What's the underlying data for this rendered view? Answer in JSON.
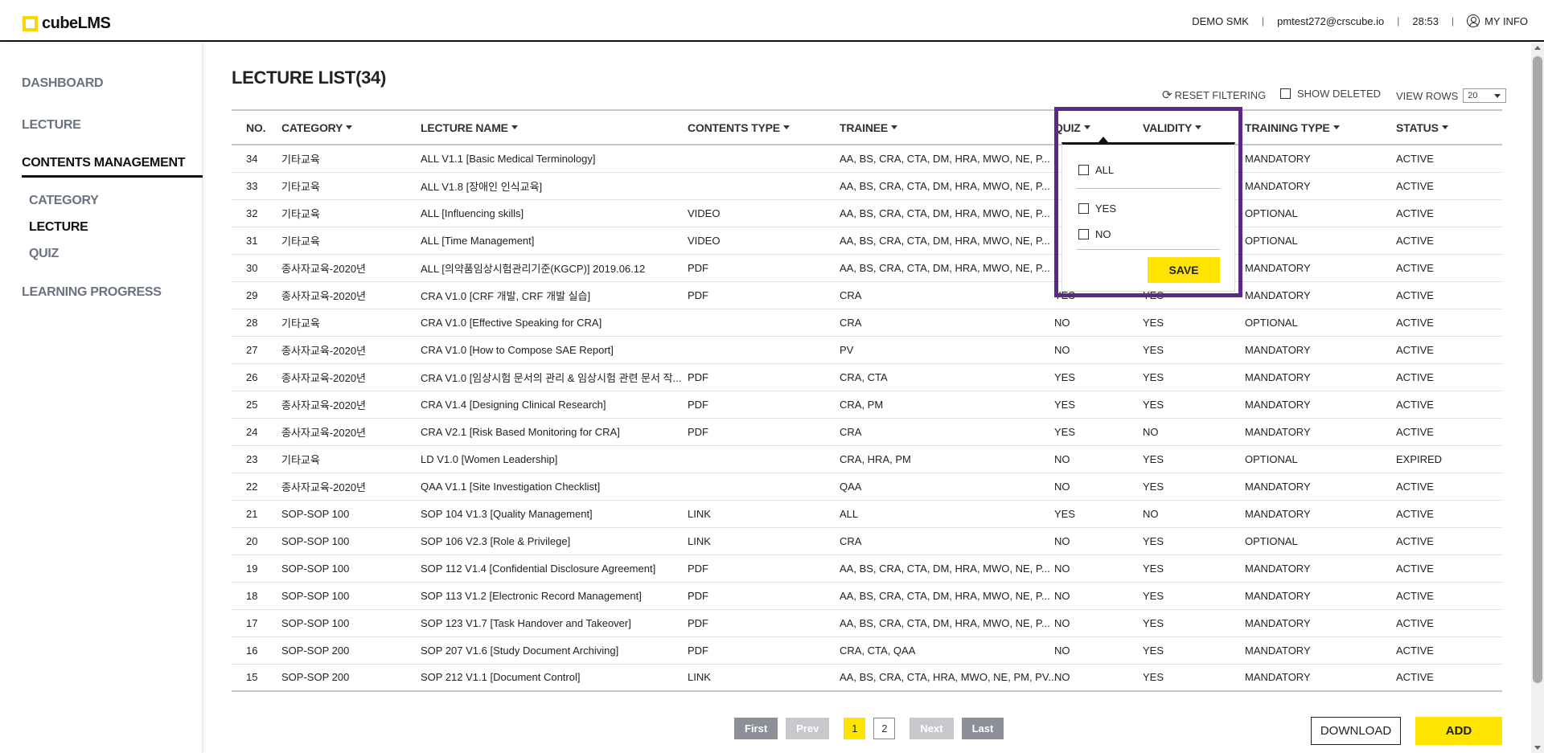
{
  "brand": {
    "name": "cubeLMS",
    "accent": "#ffe400"
  },
  "header": {
    "account": "DEMO SMK",
    "email": "pmtest272@crscube.io",
    "timer": "28:53",
    "my_info": "MY INFO"
  },
  "sidebar": {
    "items": [
      {
        "label": "DASHBOARD"
      },
      {
        "label": "LECTURE"
      },
      {
        "label": "CONTENTS MANAGEMENT"
      },
      {
        "label": "LEARNING PROGRESS"
      }
    ],
    "sub_items": [
      {
        "label": "CATEGORY"
      },
      {
        "label": "LECTURE"
      },
      {
        "label": "QUIZ"
      }
    ]
  },
  "main": {
    "title": "LECTURE LIST(34)",
    "reset_filtering": "RESET FILTERING",
    "show_deleted": "SHOW DELETED",
    "view_rows_label": "VIEW ROWS",
    "view_rows_value": "20"
  },
  "table": {
    "columns": [
      "NO.",
      "CATEGORY",
      "LECTURE NAME",
      "CONTENTS TYPE",
      "TRAINEE",
      "QUIZ",
      "VALIDITY",
      "TRAINING TYPE",
      "STATUS"
    ],
    "rows": [
      [
        "34",
        "기타교육",
        "ALL V1.1 [Basic Medical Terminology]",
        "",
        "AA, BS, CRA, CTA, DM, HRA, MWO, NE, P...",
        "",
        "",
        "MANDATORY",
        "ACTIVE"
      ],
      [
        "33",
        "기타교육",
        "ALL V1.8 [장애인 인식교육]",
        "",
        "AA, BS, CRA, CTA, DM, HRA, MWO, NE, P...",
        "",
        "",
        "MANDATORY",
        "ACTIVE"
      ],
      [
        "32",
        "기타교육",
        "ALL [Influencing skills]",
        "VIDEO",
        "AA, BS, CRA, CTA, DM, HRA, MWO, NE, P...",
        "",
        "",
        "OPTIONAL",
        "ACTIVE"
      ],
      [
        "31",
        "기타교육",
        "ALL [Time Management]",
        "VIDEO",
        "AA, BS, CRA, CTA, DM, HRA, MWO, NE, P...",
        "",
        "",
        "OPTIONAL",
        "ACTIVE"
      ],
      [
        "30",
        "종사자교육-2020년",
        "ALL [의약품임상시험관리기준(KGCP)] 2019.06.12",
        "PDF",
        "AA, BS, CRA, CTA, DM, HRA, MWO, NE, P...",
        "",
        "",
        "MANDATORY",
        "ACTIVE"
      ],
      [
        "29",
        "종사자교육-2020년",
        "CRA V1.0 [CRF 개발, CRF 개발 실습]",
        "PDF",
        "CRA",
        "YES",
        "YES",
        "MANDATORY",
        "ACTIVE"
      ],
      [
        "28",
        "기타교육",
        "CRA V1.0 [Effective Speaking for CRA]",
        "",
        "CRA",
        "NO",
        "YES",
        "OPTIONAL",
        "ACTIVE"
      ],
      [
        "27",
        "종사자교육-2020년",
        "CRA V1.0 [How to Compose SAE Report]",
        "",
        "PV",
        "NO",
        "YES",
        "MANDATORY",
        "ACTIVE"
      ],
      [
        "26",
        "종사자교육-2020년",
        "CRA V1.0 [임상시험 문서의 관리 & 임상시험 관련 문서 작...",
        "PDF",
        "CRA, CTA",
        "YES",
        "YES",
        "MANDATORY",
        "ACTIVE"
      ],
      [
        "25",
        "종사자교육-2020년",
        "CRA V1.4 [Designing Clinical Research]",
        "PDF",
        "CRA, PM",
        "YES",
        "YES",
        "MANDATORY",
        "ACTIVE"
      ],
      [
        "24",
        "종사자교육-2020년",
        "CRA V2.1 [Risk Based Monitoring for CRA]",
        "PDF",
        "CRA",
        "YES",
        "NO",
        "MANDATORY",
        "ACTIVE"
      ],
      [
        "23",
        "기타교육",
        "LD V1.0 [Women Leadership]",
        "",
        "CRA, HRA, PM",
        "NO",
        "YES",
        "OPTIONAL",
        "EXPIRED"
      ],
      [
        "22",
        "종사자교육-2020년",
        "QAA V1.1 [Site Investigation Checklist]",
        "",
        "QAA",
        "NO",
        "YES",
        "MANDATORY",
        "ACTIVE"
      ],
      [
        "21",
        "SOP-SOP 100",
        "SOP 104 V1.3 [Quality Management]",
        "LINK",
        "ALL",
        "YES",
        "NO",
        "MANDATORY",
        "ACTIVE"
      ],
      [
        "20",
        "SOP-SOP 100",
        "SOP 106 V2.3 [Role & Privilege]",
        "LINK",
        "CRA",
        "NO",
        "YES",
        "OPTIONAL",
        "ACTIVE"
      ],
      [
        "19",
        "SOP-SOP 100",
        "SOP 112 V1.4 [Confidential Disclosure Agreement]",
        "PDF",
        "AA, BS, CRA, CTA, DM, HRA, MWO, NE, P...",
        "NO",
        "YES",
        "MANDATORY",
        "ACTIVE"
      ],
      [
        "18",
        "SOP-SOP 100",
        "SOP 113 V1.2 [Electronic Record Management]",
        "PDF",
        "AA, BS, CRA, CTA, DM, HRA, MWO, NE, P...",
        "NO",
        "YES",
        "MANDATORY",
        "ACTIVE"
      ],
      [
        "17",
        "SOP-SOP 100",
        "SOP 123 V1.7 [Task Handover and Takeover]",
        "PDF",
        "AA, BS, CRA, CTA, DM, HRA, MWO, NE, P...",
        "NO",
        "YES",
        "MANDATORY",
        "ACTIVE"
      ],
      [
        "16",
        "SOP-SOP 200",
        "SOP 207 V1.6 [Study Document Archiving]",
        "PDF",
        "CRA, CTA, QAA",
        "NO",
        "YES",
        "MANDATORY",
        "ACTIVE"
      ],
      [
        "15",
        "SOP-SOP 200",
        "SOP 212 V1.1 [Document Control]",
        "LINK",
        "AA, BS, CRA, CTA, HRA, MWO, NE, PM, PV...",
        "NO",
        "YES",
        "MANDATORY",
        "ACTIVE"
      ]
    ]
  },
  "quiz_filter": {
    "options": [
      {
        "label": "ALL",
        "checked": false
      },
      {
        "label": "YES",
        "checked": false
      },
      {
        "label": "NO",
        "checked": false
      }
    ],
    "save_label": "SAVE"
  },
  "pagination": {
    "first": "First",
    "prev": "Prev",
    "pages": [
      "1",
      "2"
    ],
    "current": "1",
    "next": "Next",
    "last": "Last"
  },
  "actions": {
    "download": "DOWNLOAD",
    "add": "ADD"
  }
}
